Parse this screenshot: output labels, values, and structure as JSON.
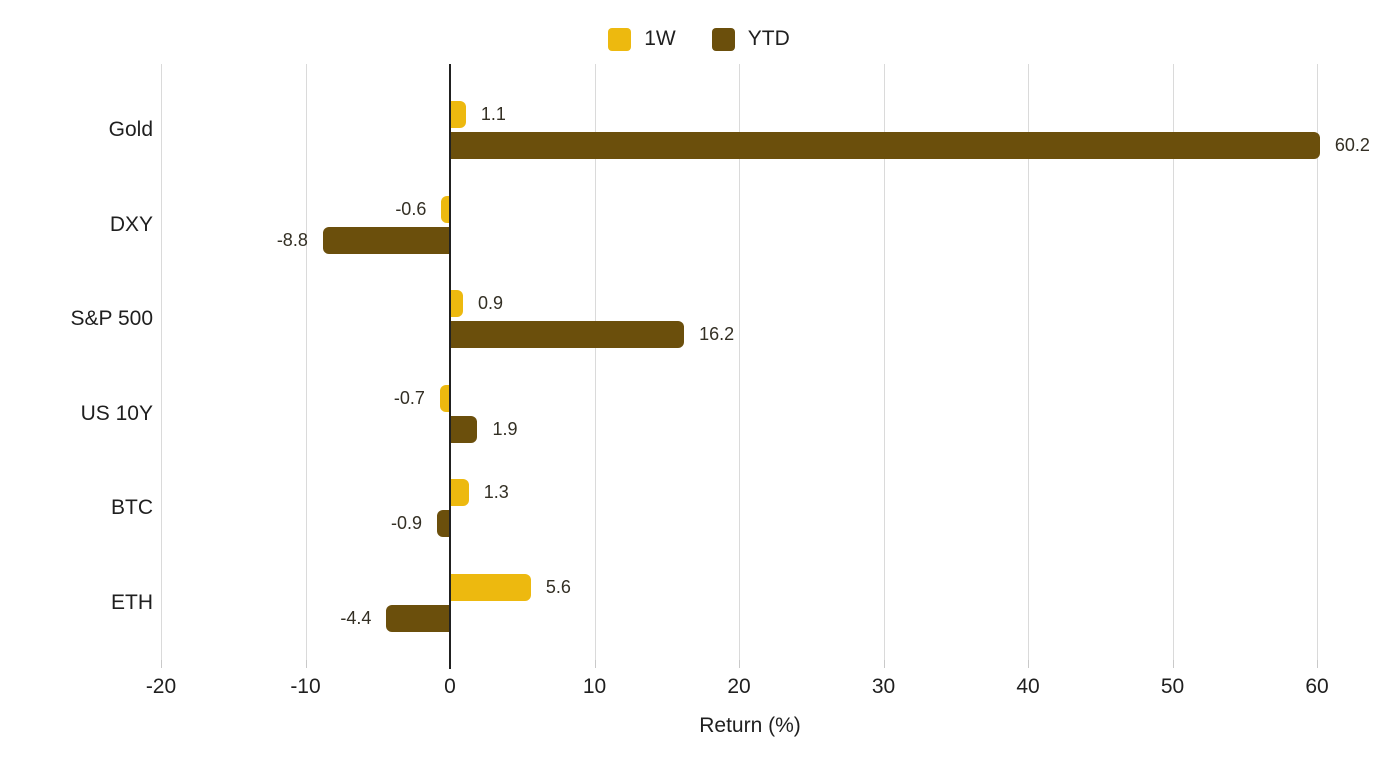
{
  "chart_data": {
    "type": "bar",
    "orientation": "horizontal",
    "categories": [
      "Gold",
      "DXY",
      "S&P 500",
      "US 10Y",
      "BTC",
      "ETH"
    ],
    "series": [
      {
        "name": "1W",
        "color": "#EDB90F",
        "values": [
          1.1,
          -0.6,
          0.9,
          -0.7,
          1.3,
          5.6
        ]
      },
      {
        "name": "YTD",
        "color": "#6B4F0C",
        "values": [
          60.2,
          -8.8,
          16.2,
          1.9,
          -0.9,
          -4.4
        ]
      }
    ],
    "bar_labels": {
      "1W": [
        "1.1",
        "-0.6",
        "0.9",
        "-0.7",
        "1.3",
        "5.6"
      ],
      "YTD": [
        "60.2",
        "-8.8",
        "16.2",
        "1.9",
        "-0.9",
        "-4.4"
      ]
    },
    "xlabel": "Return (%)",
    "xticks": [
      -20,
      -10,
      0,
      10,
      20,
      30,
      40,
      50,
      60
    ],
    "xlim": [
      -20,
      61.5
    ],
    "grid": true,
    "legend_position": "top",
    "colors": {
      "series_1w": "#EDB90F",
      "series_ytd": "#6B4F0C",
      "gridline": "#DADADA",
      "zero_line": "#212121",
      "axis_text": "#1F1F1F",
      "value_label_text": "#332F24",
      "background": "#FFFFFF"
    }
  }
}
